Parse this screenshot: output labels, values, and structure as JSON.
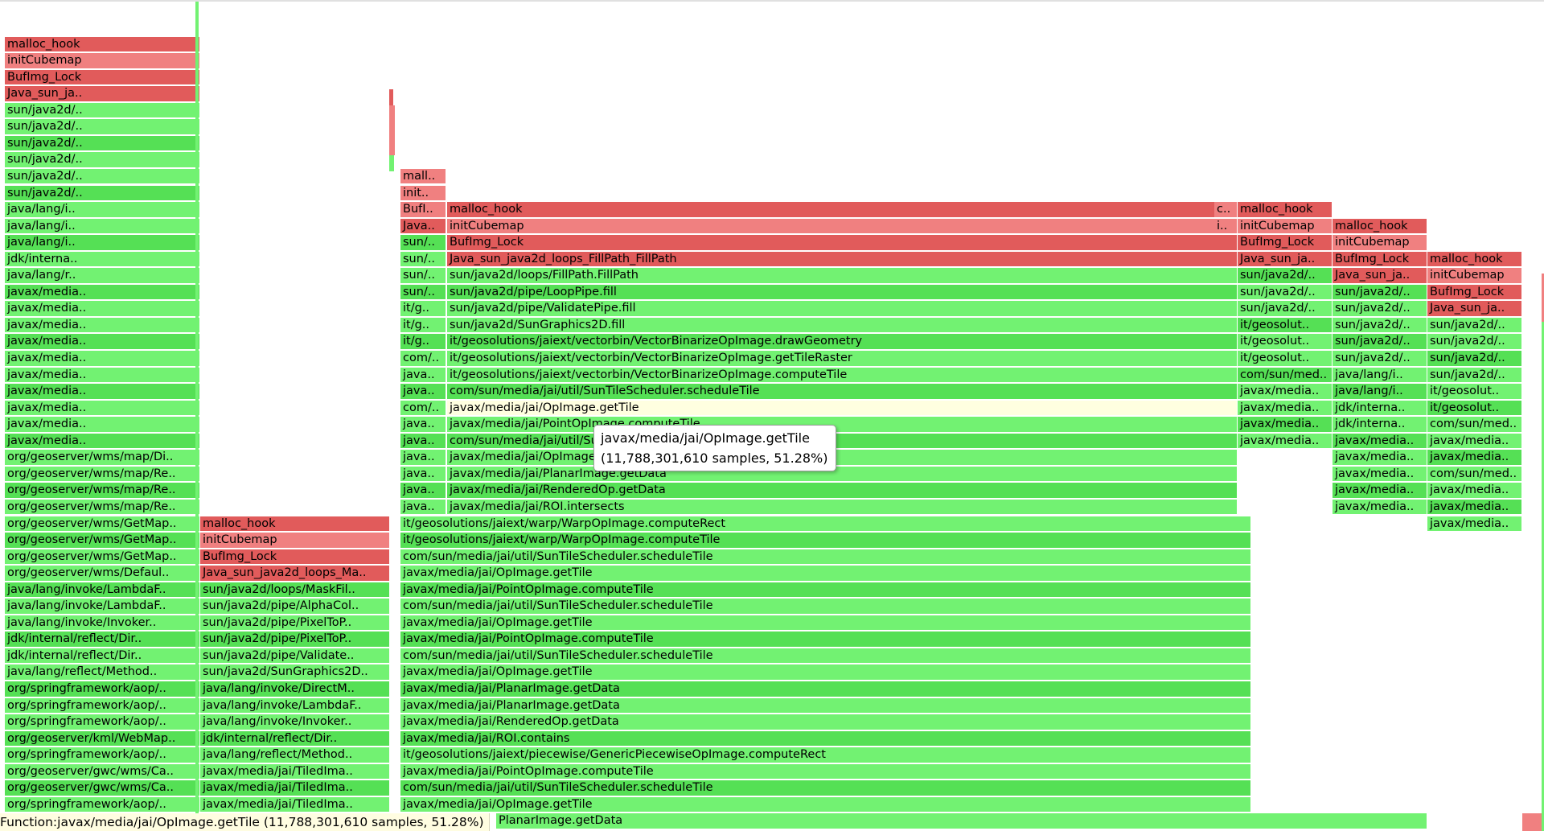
{
  "tooltip": {
    "name": "javax/media/jai/OpImage.getTile",
    "detail": "(11,788,301,610 samples, 51.28%)"
  },
  "status": {
    "prefix": "Function: ",
    "text": "javax/media/jai/OpImage.getTile (11,788,301,610 samples, 51.28%)"
  },
  "colors": {
    "red": "#f08080",
    "red_dark": "#e15b5b",
    "green": "#72f272",
    "green_alt": "#55e055",
    "highlight": "#ffffe0"
  },
  "columns": [
    {
      "id": "col1",
      "labels": [
        "org/springframework/aop/..",
        "org/geoserver/gwc/wms/Ca..",
        "org/geoserver/gwc/wms/Ca..",
        "org/springframework/aop/..",
        "org/geoserver/kml/WebMap..",
        "org/springframework/aop/..",
        "org/springframework/aop/..",
        "org/springframework/aop/..",
        "java/lang/reflect/Method..",
        "jdk/internal/reflect/Dir..",
        "jdk/internal/reflect/Dir..",
        "java/lang/invoke/Invoker..",
        "java/lang/invoke/LambdaF..",
        "java/lang/invoke/LambdaF..",
        "org/geoserver/wms/Defaul..",
        "org/geoserver/wms/GetMap..",
        "org/geoserver/wms/GetMap..",
        "org/geoserver/wms/GetMap..",
        "org/geoserver/wms/map/Re..",
        "org/geoserver/wms/map/Re..",
        "org/geoserver/wms/map/Re..",
        "org/geoserver/wms/map/Di..",
        "javax/media..",
        "javax/media..",
        "javax/media..",
        "javax/media..",
        "javax/media..",
        "javax/media..",
        "javax/media..",
        "javax/media..",
        "javax/media..",
        "javax/media..",
        "java/lang/r..",
        "jdk/interna..",
        "java/lang/i..",
        "java/lang/i..",
        "java/lang/i..",
        "sun/java2d/..",
        "sun/java2d/..",
        "sun/java2d/..",
        "sun/java2d/..",
        "sun/java2d/..",
        "sun/java2d/..",
        "Java_sun_ja..",
        "BufImg_Lock",
        "initCubemap",
        "malloc_hook"
      ],
      "green_until": 42
    },
    {
      "id": "col2",
      "labels": [
        "javax/media/jai/TiledIma..",
        "javax/media/jai/TiledIma..",
        "javax/media/jai/TiledIma..",
        "java/lang/reflect/Method..",
        "jdk/internal/reflect/Dir..",
        "java/lang/invoke/Invoker..",
        "java/lang/invoke/LambdaF..",
        "java/lang/invoke/DirectM..",
        "sun/java2d/SunGraphics2D..",
        "sun/java2d/pipe/Validate..",
        "sun/java2d/pipe/PixelToP..",
        "sun/java2d/pipe/PixelToP..",
        "sun/java2d/pipe/AlphaCol..",
        "sun/java2d/loops/MaskFil..",
        "Java_sun_java2d_loops_Ma..",
        "BufImg_Lock",
        "initCubemap",
        "malloc_hook"
      ],
      "green_until": 13
    },
    {
      "id": "col3",
      "labels": [
        "javax/media/jai/OpImage.getTile",
        "com/sun/media/jai/util/SunTileScheduler.scheduleTile",
        "javax/media/jai/PointOpImage.computeTile",
        "it/geosolutions/jaiext/piecewise/GenericPiecewiseOpImage.computeRect",
        "javax/media/jai/ROI.contains",
        "javax/media/jai/RenderedOp.getData",
        "javax/media/jai/PlanarImage.getData",
        "javax/media/jai/PlanarImage.getData",
        "javax/media/jai/OpImage.getTile",
        "com/sun/media/jai/util/SunTileScheduler.scheduleTile",
        "javax/media/jai/PointOpImage.computeTile",
        "javax/media/jai/OpImage.getTile",
        "com/sun/media/jai/util/SunTileScheduler.scheduleTile",
        "javax/media/jai/PointOpImage.computeTile",
        "javax/media/jai/OpImage.getTile",
        "com/sun/media/jai/util/SunTileScheduler.scheduleTile",
        "it/geosolutions/jaiext/warp/WarpOpImage.computeTile",
        "it/geosolutions/jaiext/warp/WarpOpImage.computeRect"
      ]
    },
    {
      "id": "col3a",
      "labels": [
        "java..",
        "java..",
        "java..",
        "java..",
        "java..",
        "java..",
        "com/..",
        "java..",
        "java..",
        "com/..",
        "it/g..",
        "it/g..",
        "it/g..",
        "sun/..",
        "sun/..",
        "sun/..",
        "sun/..",
        "Java..",
        "BufI..",
        "init..",
        "mall.."
      ],
      "green_until": 16
    },
    {
      "id": "col3b",
      "labels": [
        "javax/media/jai/ROI.intersects",
        "javax/media/jai/RenderedOp.getData",
        "javax/media/jai/PlanarImage.getData",
        "javax/media/jai/OpImage.getTile",
        "com/sun/media/jai/util/SunTileScheduler.scheduleTile",
        "javax/media/jai/PointOpImage.computeTile",
        "javax/media/jai/OpImage.getTile",
        "com/sun/media/jai/util/SunTileScheduler.scheduleTile",
        "it/geosolutions/jaiext/vectorbin/VectorBinarizeOpImage.computeTile",
        "it/geosolutions/jaiext/vectorbin/VectorBinarizeOpImage.getTileRaster",
        "it/geosolutions/jaiext/vectorbin/VectorBinarizeOpImage.drawGeometry",
        "sun/java2d/SunGraphics2D.fill",
        "sun/java2d/pipe/ValidatePipe.fill",
        "sun/java2d/pipe/LoopPipe.fill",
        "sun/java2d/loops/FillPath.FillPath",
        "Java_sun_java2d_loops_FillPath_FillPath",
        "BufImg_Lock",
        "initCubemap",
        "malloc_hook"
      ],
      "green_until": 15
    },
    {
      "id": "col3c",
      "labels": [
        "i..",
        "c.."
      ]
    },
    {
      "id": "col4",
      "labels": [
        "javax/media..",
        "javax/media..",
        "javax/media..",
        "javax/media..",
        "com/sun/med..",
        "it/geosolut..",
        "it/geosolut..",
        "it/geosolut..",
        "sun/java2d/..",
        "sun/java2d/..",
        "sun/java2d/..",
        "Java_sun_ja..",
        "BufImg_Lock",
        "initCubemap",
        "malloc_hook"
      ],
      "green_until": 11
    },
    {
      "id": "col5",
      "labels": [
        "javax/media..",
        "javax/media..",
        "javax/media..",
        "javax/media..",
        "javax/media..",
        "jdk/interna..",
        "jdk/interna..",
        "java/lang/i..",
        "java/lang/i..",
        "sun/java2d/..",
        "sun/java2d/..",
        "sun/java2d/..",
        "sun/java2d/..",
        "sun/java2d/..",
        "Java_sun_ja..",
        "BufImg_Lock",
        "initCubemap",
        "malloc_hook"
      ],
      "green_until": 14
    },
    {
      "id": "col6",
      "labels": [
        "javax/media..",
        "javax/media..",
        "javax/media..",
        "com/sun/med..",
        "javax/media..",
        "javax/media..",
        "com/sun/med..",
        "it/geosolut..",
        "it/geosolut..",
        "sun/java2d/..",
        "sun/java2d/..",
        "sun/java2d/..",
        "sun/java2d/..",
        "Java_sun_ja..",
        "BufImg_Lock",
        "initCubemap",
        "malloc_hook"
      ],
      "green_until": 13
    },
    {
      "id": "col_bottom",
      "labels": [
        "PlanarImage.getData"
      ]
    }
  ]
}
